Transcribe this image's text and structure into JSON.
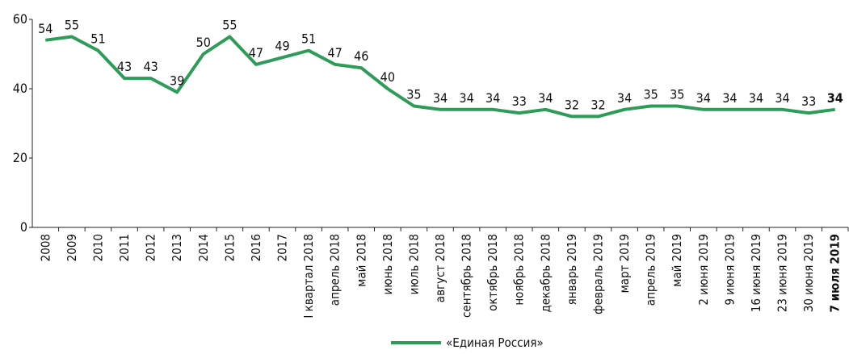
{
  "chart_data": {
    "type": "line",
    "categories": [
      "2008",
      "2009",
      "2010",
      "2011",
      "2012",
      "2013",
      "2014",
      "2015",
      "2016",
      "2017",
      "I квартал 2018",
      "апрель 2018",
      "май 2018",
      "июнь 2018",
      "июль 2018",
      "август 2018",
      "сентябрь 2018",
      "октябрь 2018",
      "ноябрь 2018",
      "декабрь 2018",
      "январь 2019",
      "февраль 2019",
      "март 2019",
      "апрель 2019",
      "май 2019",
      "2 июня 2019",
      "9 июня 2019",
      "16 июня 2019",
      "23 июня 2019",
      "30 июня 2019",
      "7 июля 2019"
    ],
    "series": [
      {
        "name": "«Единая Россия»",
        "color": "#2e9c58",
        "values": [
          54,
          55,
          51,
          43,
          43,
          39,
          50,
          55,
          47,
          49,
          51,
          47,
          46,
          40,
          35,
          34,
          34,
          34,
          33,
          34,
          32,
          32,
          34,
          35,
          35,
          34,
          34,
          34,
          34,
          33,
          34
        ]
      }
    ],
    "ylim": [
      0,
      60
    ],
    "yticks": [
      0,
      20,
      40,
      60
    ],
    "grid": false,
    "legend": "bottom",
    "bold_last": true
  }
}
